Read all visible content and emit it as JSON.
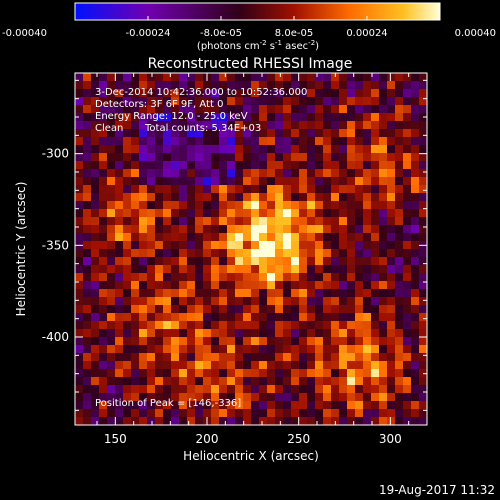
{
  "colorbar": {
    "tick_labels": [
      "-0.00040",
      "-0.00024",
      "-8.0e-05",
      "8.0e-05",
      "0.00024",
      "0.00040"
    ],
    "tick_values": [
      -0.0004,
      -0.00024,
      -8e-05,
      8e-05,
      0.00024,
      0.0004
    ],
    "range": [
      -0.0004,
      0.0004
    ],
    "units_prefix": "(photons cm",
    "units_exp1": "-2",
    "units_mid": " s",
    "units_exp2": "-1",
    "units_mid2": " asec",
    "units_exp3": "-2",
    "units_suffix": ")",
    "colors": [
      "#0010ff",
      "#7000b0",
      "#300018",
      "#a01000",
      "#ff6a00",
      "#ffc020",
      "#ffffd8"
    ]
  },
  "chart_data": {
    "type": "heatmap",
    "title": "Reconstructed RHESSI Image",
    "xlabel": "Heliocentric X (arcsec)",
    "ylabel": "Heliocentric Y (arcsec)",
    "xlim": [
      128,
      320
    ],
    "ylim": [
      -448,
      -256
    ],
    "xticks": [
      150,
      200,
      250,
      300
    ],
    "yticks": [
      -300,
      -350,
      -400
    ],
    "peak": [
      146,
      -336
    ],
    "annotations": {
      "line1": "3-Dec-2014 10:42:36.000 to 10:52:36.000",
      "line2": "Detectors: 3F 6F 9F, Att 0",
      "line3": "Energy Range: 12.0 - 25.0 keV",
      "line4_a": "Clean",
      "line4_b": "Total counts: 5.34E+03",
      "peak_label": "Position of Peak = [146,-336]"
    }
  },
  "footer": {
    "timestamp": "19-Aug-2017 11:32"
  }
}
